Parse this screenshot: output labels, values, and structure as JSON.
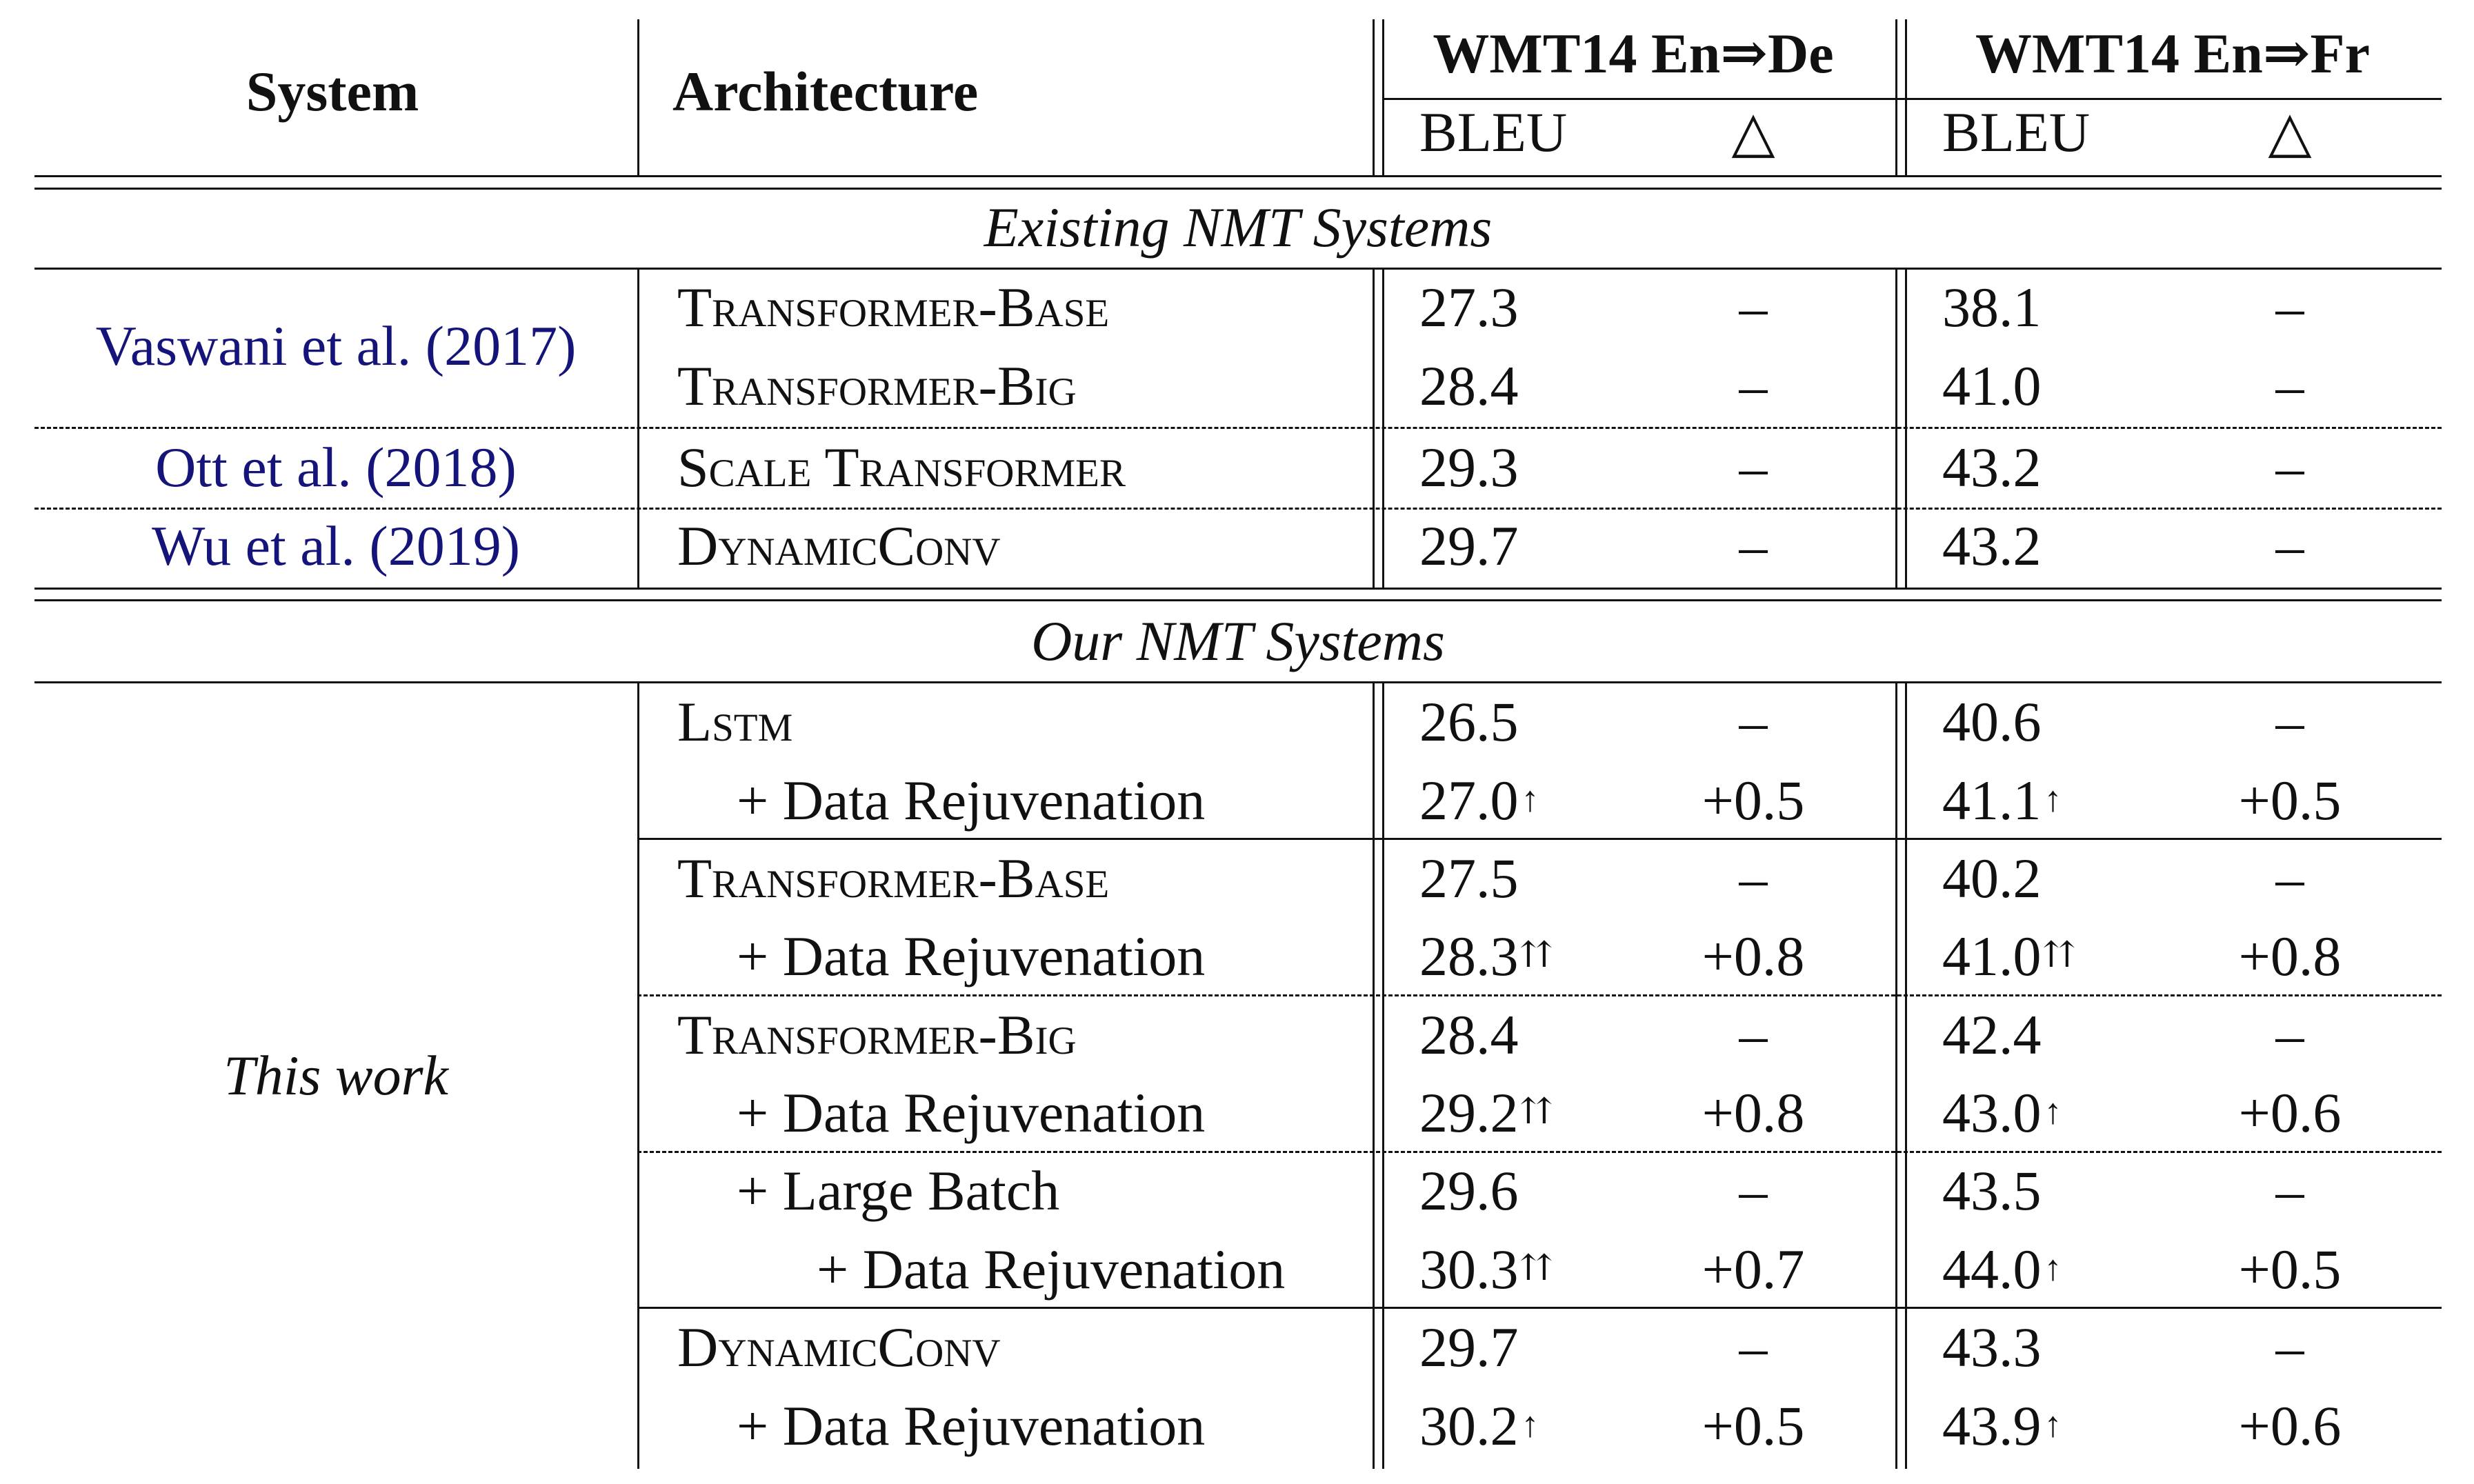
{
  "header": {
    "system": "System",
    "architecture": "Architecture",
    "group_de": "WMT14 En⇒De",
    "group_fr": "WMT14 En⇒Fr",
    "bleu": "BLEU",
    "delta": "△"
  },
  "sections": {
    "existing": "Existing NMT Systems",
    "ours": "Our NMT Systems"
  },
  "existing_rows": [
    {
      "system": "Vaswani et al. (2017)",
      "arch": "Transformer-Base",
      "de_bleu": "27.3",
      "de_delta": "–",
      "fr_bleu": "38.1",
      "fr_delta": "–"
    },
    {
      "arch": "Transformer-Big",
      "de_bleu": "28.4",
      "de_delta": "–",
      "fr_bleu": "41.0",
      "fr_delta": "–"
    },
    {
      "system": "Ott et al. (2018)",
      "arch": "Scale Transformer",
      "de_bleu": "29.3",
      "de_delta": "–",
      "fr_bleu": "43.2",
      "fr_delta": "–"
    },
    {
      "system": "Wu et al. (2019)",
      "arch": "DynamicConv",
      "de_bleu": "29.7",
      "de_delta": "–",
      "fr_bleu": "43.2",
      "fr_delta": "–"
    }
  ],
  "our_system": "This work",
  "our_rows": [
    {
      "arch": "Lstm",
      "de_bleu": "26.5",
      "de_mark": "",
      "de_delta": "–",
      "fr_bleu": "40.6",
      "fr_mark": "",
      "fr_delta": "–"
    },
    {
      "arch": "+ Data Rejuvenation",
      "de_bleu": "27.0",
      "de_mark": "↑",
      "de_delta": "+0.5",
      "fr_bleu": "41.1",
      "fr_mark": "↑",
      "fr_delta": "+0.5"
    },
    {
      "arch": "Transformer-Base",
      "de_bleu": "27.5",
      "de_mark": "",
      "de_delta": "–",
      "fr_bleu": "40.2",
      "fr_mark": "",
      "fr_delta": "–"
    },
    {
      "arch": "+ Data Rejuvenation",
      "de_bleu": "28.3",
      "de_mark": "⇈",
      "de_delta": "+0.8",
      "fr_bleu": "41.0",
      "fr_mark": "⇈",
      "fr_delta": "+0.8"
    },
    {
      "arch": "Transformer-Big",
      "de_bleu": "28.4",
      "de_mark": "",
      "de_delta": "–",
      "fr_bleu": "42.4",
      "fr_mark": "",
      "fr_delta": "–"
    },
    {
      "arch": "+ Data Rejuvenation",
      "de_bleu": "29.2",
      "de_mark": "⇈",
      "de_delta": "+0.8",
      "fr_bleu": "43.0",
      "fr_mark": "↑",
      "fr_delta": "+0.6"
    },
    {
      "arch": "+ Large Batch",
      "de_bleu": "29.6",
      "de_mark": "",
      "de_delta": "–",
      "fr_bleu": "43.5",
      "fr_mark": "",
      "fr_delta": "–"
    },
    {
      "arch": "+ Data Rejuvenation",
      "de_bleu": "30.3",
      "de_mark": "⇈",
      "de_delta": "+0.7",
      "fr_bleu": "44.0",
      "fr_mark": "↑",
      "fr_delta": "+0.5"
    },
    {
      "arch": "DynamicConv",
      "de_bleu": "29.7",
      "de_mark": "",
      "de_delta": "–",
      "fr_bleu": "43.3",
      "fr_mark": "",
      "fr_delta": "–"
    },
    {
      "arch": "+ Data Rejuvenation",
      "de_bleu": "30.2",
      "de_mark": "↑",
      "de_delta": "+0.5",
      "fr_bleu": "43.9",
      "fr_mark": "↑",
      "fr_delta": "+0.6"
    }
  ]
}
